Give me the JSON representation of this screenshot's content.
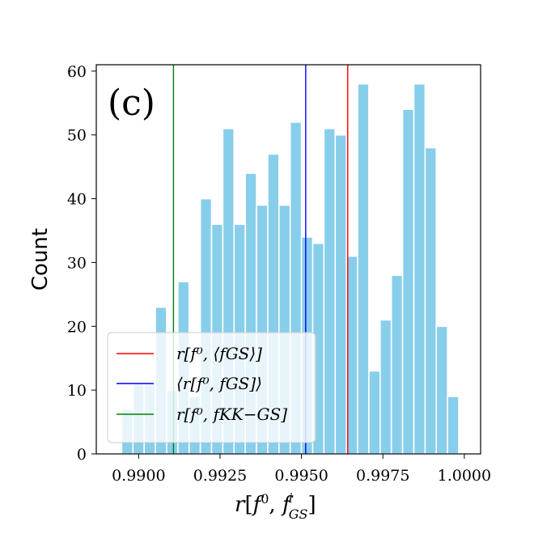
{
  "chart_data": {
    "type": "bar",
    "subtype": "histogram",
    "panel_label": "(c)",
    "xlabel": "r[f⁰, fᵢGS]",
    "ylabel": "Count",
    "xlim": [
      0.9887,
      1.0005
    ],
    "ylim": [
      0,
      61
    ],
    "xticks": [
      0.99,
      0.9925,
      0.995,
      0.9975,
      1.0
    ],
    "xtick_labels": [
      "0.9900",
      "0.9925",
      "0.9950",
      "0.9975",
      "1.0000"
    ],
    "yticks": [
      0,
      10,
      20,
      30,
      40,
      50,
      60
    ],
    "ytick_labels": [
      "0",
      "10",
      "20",
      "30",
      "40",
      "50",
      "60"
    ],
    "bar_color": "#87ceeb",
    "bin_start": 0.98948,
    "bin_width": 0.000345,
    "counts": [
      7,
      11,
      11,
      23,
      10,
      27,
      9,
      40,
      36,
      51,
      36,
      44,
      39,
      47,
      39,
      52,
      34,
      33,
      51,
      50,
      31,
      58,
      13,
      21,
      28,
      54,
      58,
      48,
      20,
      9
    ],
    "vlines": [
      {
        "name": "r[f⁰, ⟨fGS⟩]",
        "x": 0.99642,
        "color": "#ff0000"
      },
      {
        "name": "⟨r[f⁰, fGS]⟩",
        "x": 0.99513,
        "color": "#0000ff"
      },
      {
        "name": "r[f⁰, fKK−GS]",
        "x": 0.99107,
        "color": "#008000"
      }
    ],
    "legend": {
      "location": "lower-left",
      "entries": [
        "r[f⁰, ⟨fGS⟩]",
        "⟨r[f⁰, fGS]⟩",
        "r[f⁰, fKK−GS]"
      ]
    }
  }
}
